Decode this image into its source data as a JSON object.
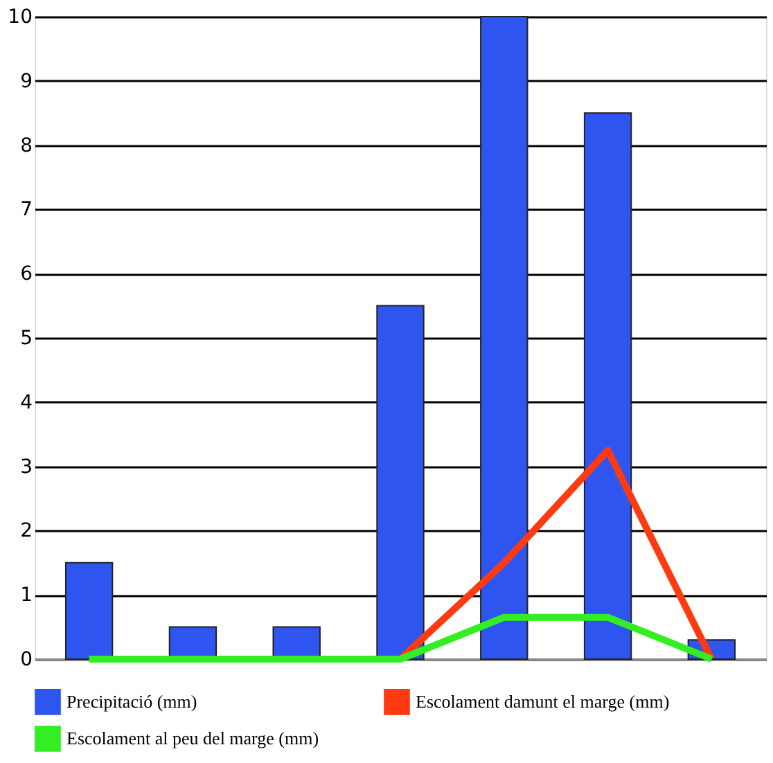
{
  "chart_data": {
    "type": "bar",
    "categories": [
      null,
      null,
      null,
      null,
      null,
      null,
      null
    ],
    "series": [
      {
        "name": "Precipitació (mm)",
        "color": "#2f55f0",
        "values": [
          1.5,
          0.5,
          0.5,
          5.5,
          10,
          8.5,
          0.3
        ]
      },
      {
        "name": "Escolament damunt el marge (mm)",
        "type": "line",
        "color": "#ff3a10",
        "values": [
          null,
          null,
          0,
          0,
          1.5,
          3.25,
          0
        ]
      },
      {
        "name": "Escolament al peu del marge  (mm)",
        "type": "line",
        "color": "#33ee22",
        "values": [
          0,
          0,
          0,
          0,
          0.65,
          0.65,
          0
        ]
      }
    ],
    "ylim": [
      0,
      10
    ],
    "yticks": [
      0,
      1,
      2,
      3,
      4,
      5,
      6,
      7,
      8,
      9,
      10
    ],
    "grid": "y",
    "legend": "bottom",
    "tick_labels": "y",
    "marker": "none",
    "line_style": "solid"
  }
}
